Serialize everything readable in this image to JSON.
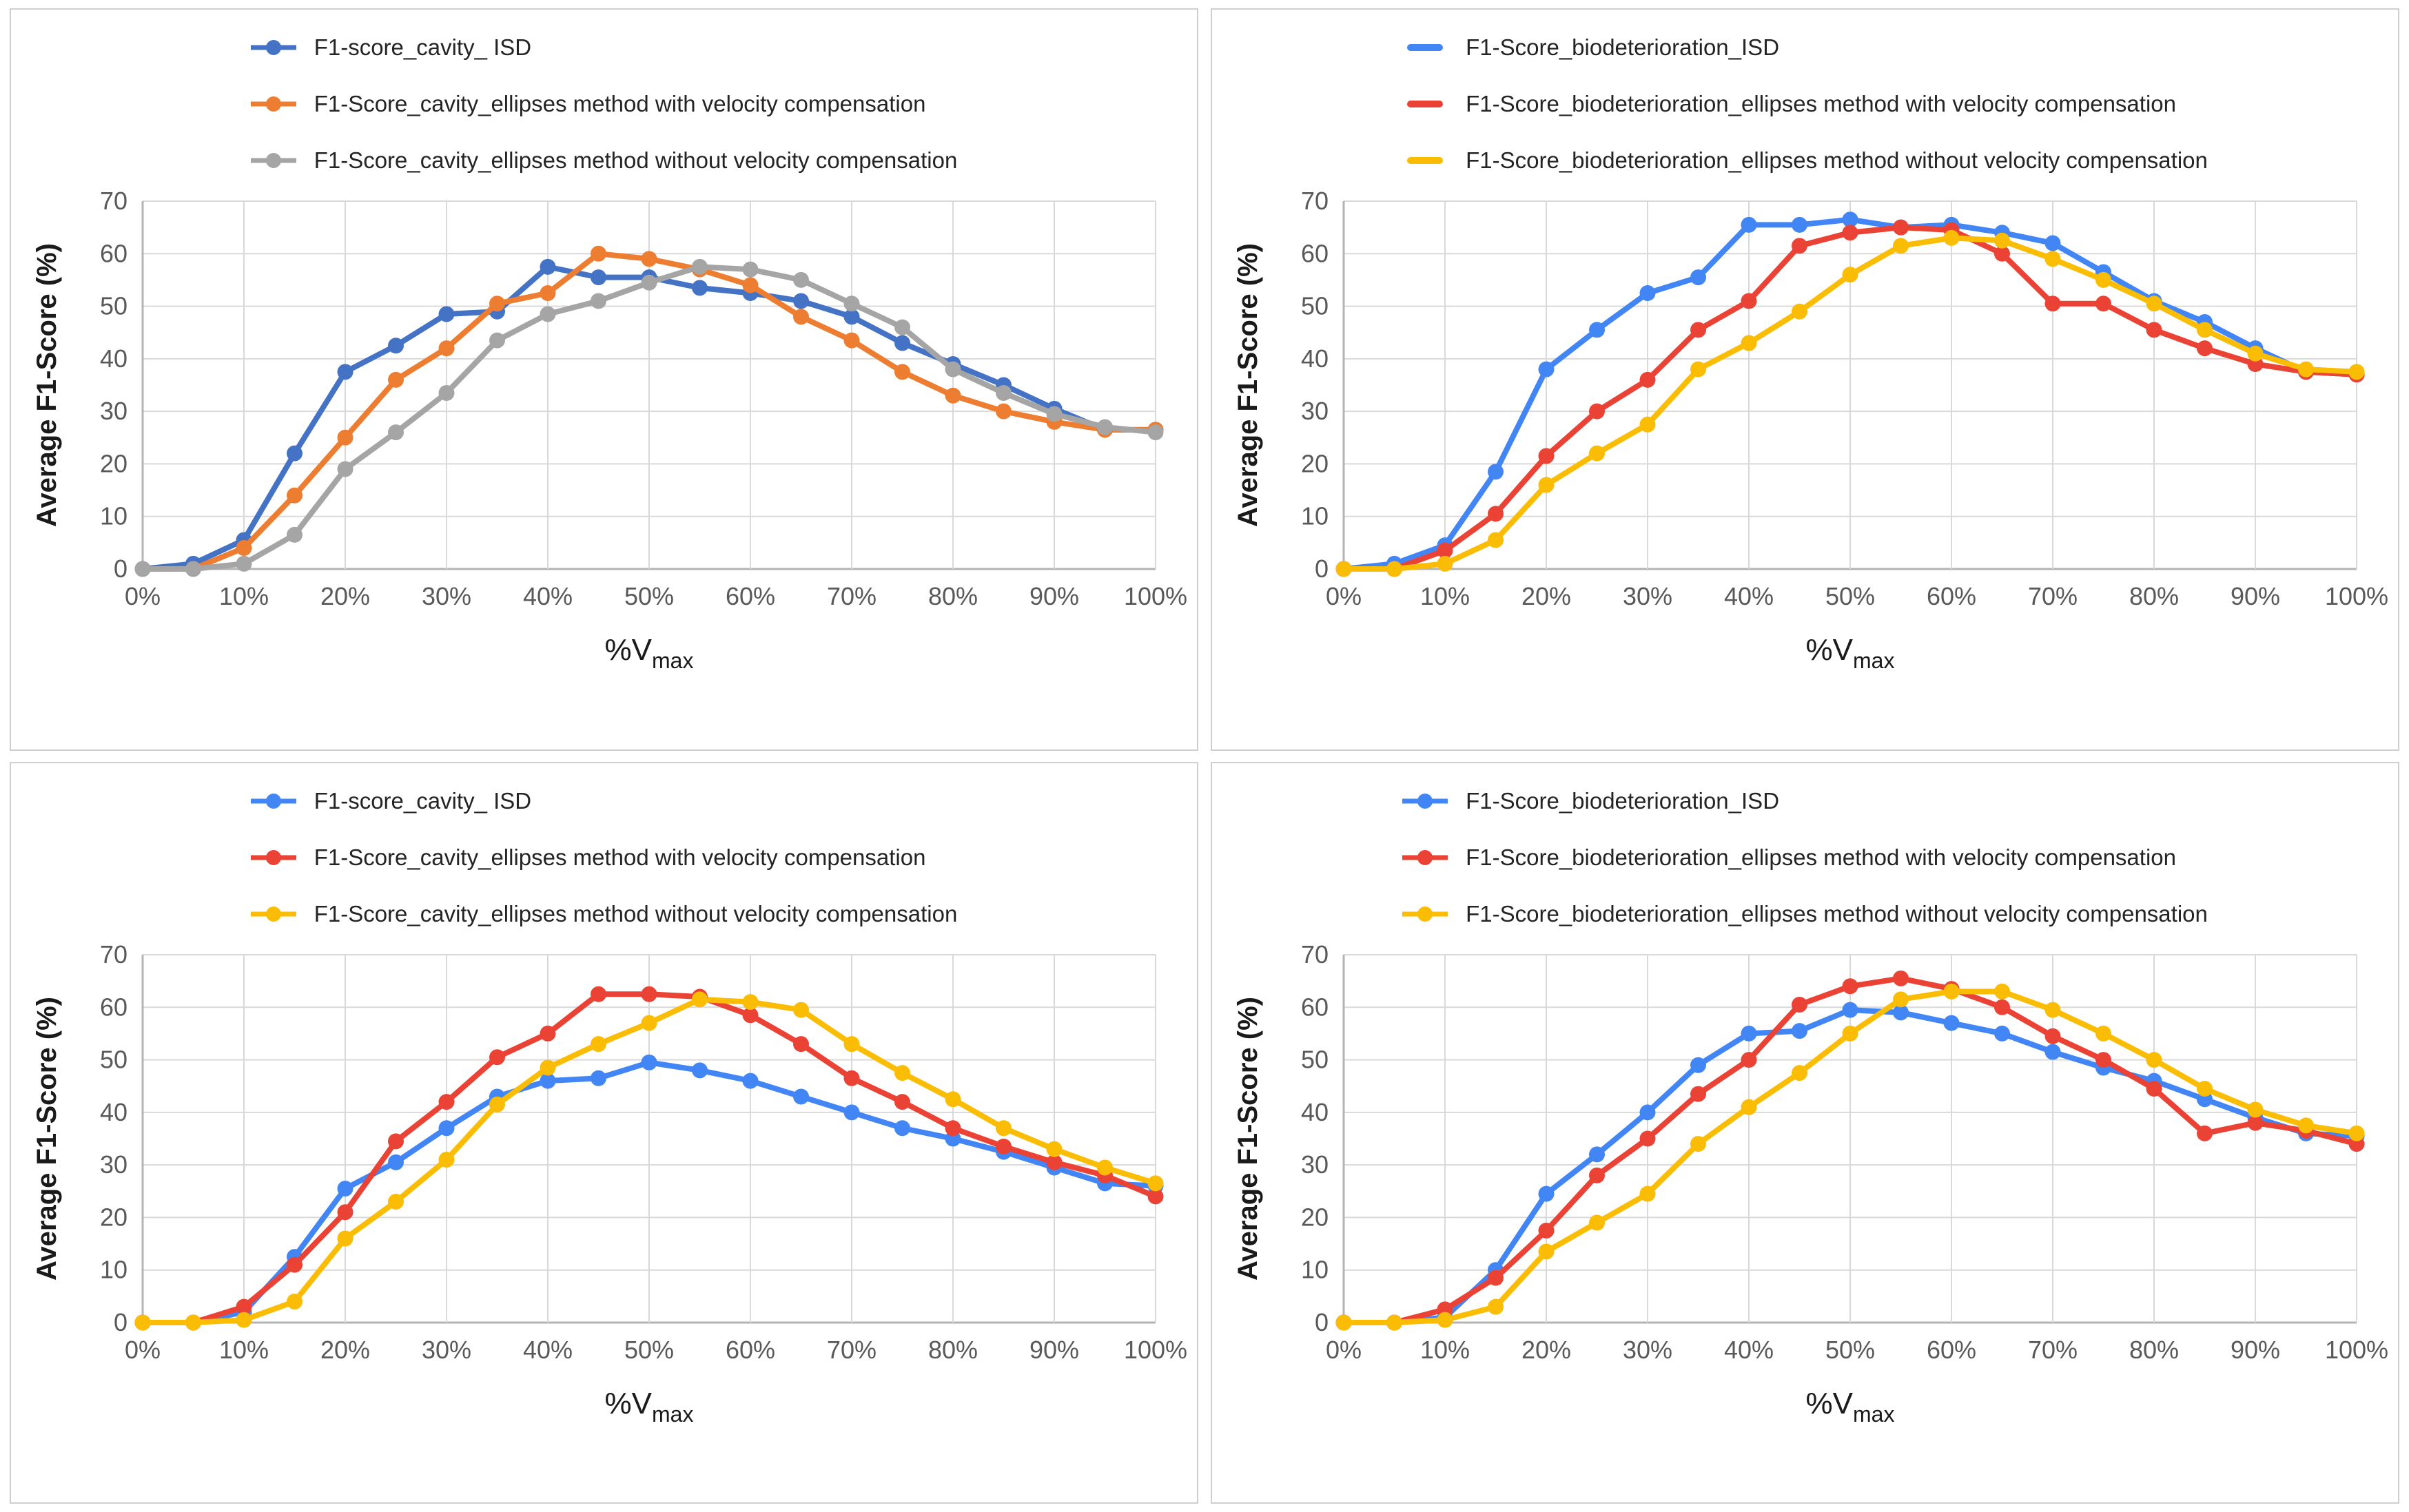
{
  "chart_data": [
    {
      "type": "line",
      "position": "top-left",
      "title": "",
      "ylabel": "Average F1-Score (%)",
      "xlabel_main": "%V",
      "xlabel_subscript": "max",
      "ylim": [
        0,
        70
      ],
      "grid": true,
      "legend_position": "top",
      "legend_marker_style": "line-dot",
      "y_tick_labels": [
        "0",
        "10",
        "20",
        "30",
        "40",
        "50",
        "60",
        "70"
      ],
      "x_tick_labels": [
        "0%",
        "10%",
        "20%",
        "30%",
        "40%",
        "50%",
        "60%",
        "70%",
        "80%",
        "90%",
        "100%"
      ],
      "x": [
        0,
        5,
        10,
        15,
        20,
        25,
        30,
        35,
        40,
        45,
        50,
        55,
        60,
        65,
        70,
        75,
        80,
        85,
        90,
        95,
        100
      ],
      "series": [
        {
          "name": "F1-score_cavity_ ISD",
          "color": "#4472C4",
          "values": [
            0,
            1,
            5.5,
            22,
            37.5,
            42.5,
            48.5,
            49,
            57.5,
            55.5,
            55.5,
            53.5,
            52.5,
            51,
            48,
            43,
            39,
            35,
            30.5,
            26.5,
            26.5
          ]
        },
        {
          "name": "F1-Score_cavity_ellipses method with velocity compensation",
          "color": "#ED7D31",
          "values": [
            0,
            0,
            4,
            14,
            25,
            36,
            42,
            50.5,
            52.5,
            60,
            59,
            57,
            54,
            48,
            43.5,
            37.5,
            33,
            30,
            28,
            26.5,
            26.5
          ]
        },
        {
          "name": "F1-Score_cavity_ellipses method without velocity compensation",
          "color": "#A5A5A5",
          "values": [
            0,
            0,
            1,
            6.5,
            19,
            26,
            33.5,
            43.5,
            48.5,
            51,
            54.5,
            57.5,
            57,
            55,
            50.5,
            46,
            38,
            33.5,
            29.5,
            27,
            26
          ]
        }
      ]
    },
    {
      "type": "line",
      "position": "top-right",
      "title": "",
      "ylabel": "Average F1-Score (%)",
      "xlabel_main": "%V",
      "xlabel_subscript": "max",
      "ylim": [
        0,
        70
      ],
      "grid": true,
      "legend_position": "top",
      "legend_marker_style": "dash",
      "y_tick_labels": [
        "0",
        "10",
        "20",
        "30",
        "40",
        "50",
        "60",
        "70"
      ],
      "x_tick_labels": [
        "0%",
        "10%",
        "20%",
        "30%",
        "40%",
        "50%",
        "60%",
        "70%",
        "80%",
        "90%",
        "100%"
      ],
      "x": [
        0,
        5,
        10,
        15,
        20,
        25,
        30,
        35,
        40,
        45,
        50,
        55,
        60,
        65,
        70,
        75,
        80,
        85,
        90,
        95,
        100
      ],
      "series": [
        {
          "name": "F1-Score_biodeterioration_ISD",
          "color": "#4285F4",
          "values": [
            0,
            1,
            4.5,
            18.5,
            38,
            45.5,
            52.5,
            55.5,
            65.5,
            65.5,
            66.5,
            65,
            65.5,
            64,
            62,
            56.5,
            51,
            47,
            42,
            37.5,
            37
          ]
        },
        {
          "name": "F1-Score_biodeterioration_ellipses method with velocity compensation",
          "color": "#EA4335",
          "values": [
            0,
            0,
            3.5,
            10.5,
            21.5,
            30,
            36,
            45.5,
            51,
            61.5,
            64,
            65,
            64.5,
            60,
            50.5,
            50.5,
            45.5,
            42,
            39,
            37.5,
            37
          ]
        },
        {
          "name": "F1-Score_biodeterioration_ellipses method without velocity compensation",
          "color": "#FBBC04",
          "values": [
            0,
            0,
            1,
            5.5,
            16,
            22,
            27.5,
            38,
            43,
            49,
            56,
            61.5,
            63,
            62.5,
            59,
            55,
            50.5,
            45.5,
            41,
            38,
            37.5
          ]
        }
      ]
    },
    {
      "type": "line",
      "position": "bottom-left",
      "title": "",
      "ylabel": "Average F1-Score (%)",
      "xlabel_main": "%V",
      "xlabel_subscript": "max",
      "ylim": [
        0,
        70
      ],
      "grid": true,
      "legend_position": "top",
      "legend_marker_style": "line-dot",
      "y_tick_labels": [
        "0",
        "10",
        "20",
        "30",
        "40",
        "50",
        "60",
        "70"
      ],
      "x_tick_labels": [
        "0%",
        "10%",
        "20%",
        "30%",
        "40%",
        "50%",
        "60%",
        "70%",
        "80%",
        "90%",
        "100%"
      ],
      "x": [
        0,
        5,
        10,
        15,
        20,
        25,
        30,
        35,
        40,
        45,
        50,
        55,
        60,
        65,
        70,
        75,
        80,
        85,
        90,
        95,
        100
      ],
      "series": [
        {
          "name": "F1-score_cavity_ ISD",
          "color": "#4285F4",
          "values": [
            0,
            0,
            2,
            12.5,
            25.5,
            30.5,
            37,
            43,
            46,
            46.5,
            49.5,
            48,
            46,
            43,
            40,
            37,
            35,
            32.5,
            29.5,
            26.5,
            26
          ]
        },
        {
          "name": "F1-Score_cavity_ellipses method with velocity compensation",
          "color": "#EA4335",
          "values": [
            0,
            0,
            3,
            11,
            21,
            34.5,
            42,
            50.5,
            55,
            62.5,
            62.5,
            62,
            58.5,
            53,
            46.5,
            42,
            37,
            33.5,
            30.5,
            28,
            24
          ]
        },
        {
          "name": "F1-Score_cavity_ellipses method without velocity compensation",
          "color": "#FBBC04",
          "values": [
            0,
            0,
            0.5,
            4,
            16,
            23,
            31,
            41.5,
            48.5,
            53,
            57,
            61.5,
            61,
            59.5,
            53,
            47.5,
            42.5,
            37,
            33,
            29.5,
            26.5
          ]
        }
      ]
    },
    {
      "type": "line",
      "position": "bottom-right",
      "title": "",
      "ylabel": "Average F1-Score (%)",
      "xlabel_main": "%V",
      "xlabel_subscript": "max",
      "ylim": [
        0,
        70
      ],
      "grid": true,
      "legend_position": "top",
      "legend_marker_style": "line-dot",
      "y_tick_labels": [
        "0",
        "10",
        "20",
        "30",
        "40",
        "50",
        "60",
        "70"
      ],
      "x_tick_labels": [
        "0%",
        "10%",
        "20%",
        "30%",
        "40%",
        "50%",
        "60%",
        "70%",
        "80%",
        "90%",
        "100%"
      ],
      "x": [
        0,
        5,
        10,
        15,
        20,
        25,
        30,
        35,
        40,
        45,
        50,
        55,
        60,
        65,
        70,
        75,
        80,
        85,
        90,
        95,
        100
      ],
      "series": [
        {
          "name": "F1-Score_biodeterioration_ISD",
          "color": "#4285F4",
          "values": [
            0,
            0,
            1,
            10,
            24.5,
            32,
            40,
            49,
            55,
            55.5,
            59.5,
            59,
            57,
            55,
            51.5,
            48.5,
            46,
            42.5,
            39,
            36,
            35.5
          ]
        },
        {
          "name": "F1-Score_biodeterioration_ellipses method with velocity compensation",
          "color": "#EA4335",
          "values": [
            0,
            0,
            2.5,
            8.5,
            17.5,
            28,
            35,
            43.5,
            50,
            60.5,
            64,
            65.5,
            63.5,
            60,
            54.5,
            50,
            44.5,
            36,
            38,
            36.5,
            34
          ]
        },
        {
          "name": "F1-Score_biodeterioration_ellipses method without velocity compensation",
          "color": "#FBBC04",
          "values": [
            0,
            0,
            0.5,
            3,
            13.5,
            19,
            24.5,
            34,
            41,
            47.5,
            55,
            61.5,
            63,
            63,
            59.5,
            55,
            50,
            44.5,
            40.5,
            37.5,
            36
          ]
        }
      ]
    }
  ]
}
